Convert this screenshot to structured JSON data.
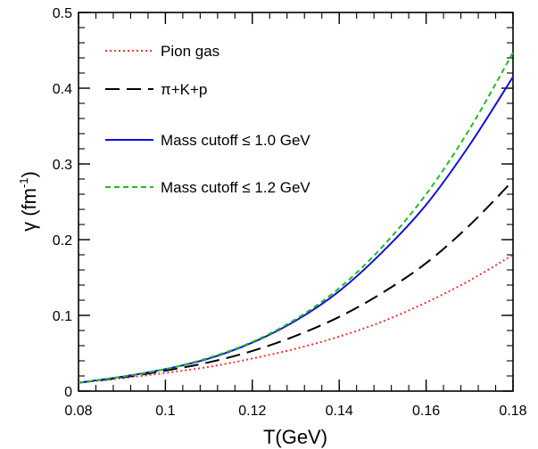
{
  "chart_data": {
    "type": "line",
    "xlabel": "T(GeV)",
    "ylabel": {
      "base": "γ (fm",
      "sup": "-1",
      "close": ")"
    },
    "xlim": [
      0.08,
      0.18
    ],
    "ylim": [
      0,
      0.5
    ],
    "x_ticks": [
      "0.08",
      "0.1",
      "0.12",
      "0.14",
      "0.16",
      "0.18"
    ],
    "y_ticks": [
      "0",
      "0.1",
      "0.2",
      "0.3",
      "0.4",
      "0.5"
    ],
    "grid": false,
    "legend_position": "top-left",
    "series": [
      {
        "name": "Pion gas",
        "color": "#ee3333",
        "dash": "dotted",
        "x": [
          0.08,
          0.09,
          0.1,
          0.11,
          0.12,
          0.13,
          0.14,
          0.15,
          0.16,
          0.17,
          0.18
        ],
        "y": [
          0.011,
          0.017,
          0.024,
          0.032,
          0.043,
          0.056,
          0.072,
          0.092,
          0.117,
          0.146,
          0.18
        ]
      },
      {
        "name": "π+K+p",
        "color": "#000000",
        "dash": "long-dash",
        "x": [
          0.08,
          0.09,
          0.1,
          0.11,
          0.12,
          0.13,
          0.14,
          0.15,
          0.16,
          0.17,
          0.18
        ],
        "y": [
          0.011,
          0.018,
          0.027,
          0.038,
          0.053,
          0.073,
          0.098,
          0.13,
          0.169,
          0.219,
          0.278
        ]
      },
      {
        "name": "Mass cutoff ≤ 1.0 GeV",
        "color": "#1010dd",
        "dash": "solid",
        "x": [
          0.08,
          0.09,
          0.1,
          0.11,
          0.12,
          0.13,
          0.14,
          0.15,
          0.16,
          0.17,
          0.18
        ],
        "y": [
          0.011,
          0.019,
          0.029,
          0.043,
          0.064,
          0.093,
          0.132,
          0.184,
          0.246,
          0.325,
          0.415
        ]
      },
      {
        "name": "Mass cutoff ≤ 1.2 GeV",
        "color": "#22bb22",
        "dash": "dashed",
        "x": [
          0.08,
          0.09,
          0.1,
          0.11,
          0.12,
          0.13,
          0.14,
          0.15,
          0.16,
          0.17,
          0.18
        ],
        "y": [
          0.011,
          0.019,
          0.029,
          0.044,
          0.065,
          0.095,
          0.136,
          0.191,
          0.26,
          0.346,
          0.447
        ]
      }
    ]
  }
}
